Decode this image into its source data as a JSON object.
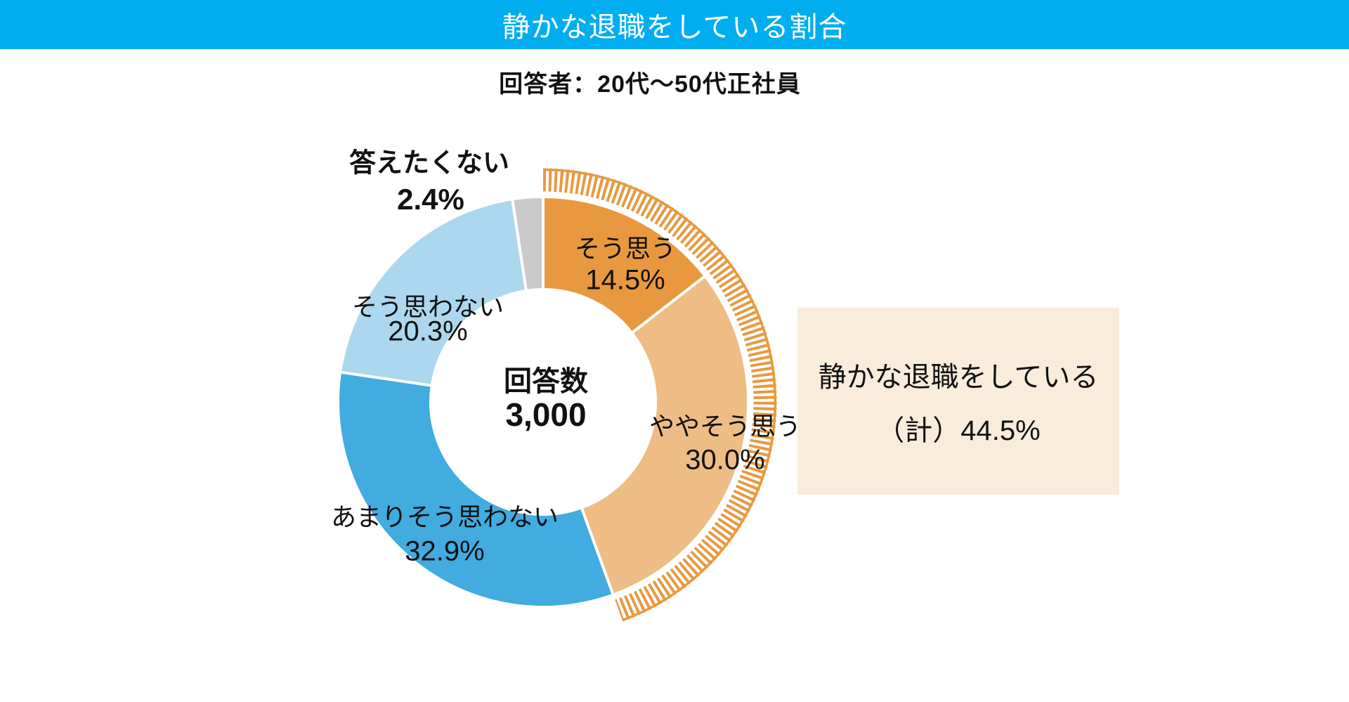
{
  "header": {
    "title": "静かな退職をしている割合"
  },
  "subtitle": "回答者：20代～50代正社員",
  "chart_data": {
    "type": "pie",
    "subtype": "donut",
    "title": "静かな退職をしている割合",
    "subtitle": "回答者：20代～50代正社員",
    "center": {
      "label": "回答数",
      "value": "3,000"
    },
    "categories": [
      "そう思う",
      "ややそう思う",
      "あまりそう思わない",
      "そう思わない",
      "答えたくない"
    ],
    "values": [
      14.5,
      30.0,
      32.9,
      20.3,
      2.4
    ],
    "segments": [
      {
        "label": "そう思う",
        "value": 14.5,
        "value_label": "14.5%",
        "color": "#E8993F"
      },
      {
        "label": "ややそう思う",
        "value": 30.0,
        "value_label": "30.0%",
        "color": "#EEBD85"
      },
      {
        "label": "あまりそう思わない",
        "value": 32.9,
        "value_label": "32.9%",
        "color": "#42ABE0"
      },
      {
        "label": "そう思わない",
        "value": 20.3,
        "value_label": "20.3%",
        "color": "#ABD8EE"
      },
      {
        "label": "答えたくない",
        "value": 2.4,
        "value_label": "2.4%",
        "color": "#CACACB"
      }
    ],
    "highlight": {
      "covers_percent": 44.5,
      "hatch_color": "#E8993F",
      "label": "静かな退職をしている",
      "value_label": "（計）44.5%"
    },
    "layout": {
      "start_angle_deg": -90,
      "direction": "clockwise",
      "legend": "none",
      "grid": "off"
    }
  },
  "summary_box": {
    "line1": "静かな退職をしている",
    "line2": "（計）44.5%"
  },
  "colors": {
    "banner": "#00AEEF",
    "background": "#FFFFFF",
    "summary_box_bg": "#F9ECDB",
    "text": "#111111"
  }
}
